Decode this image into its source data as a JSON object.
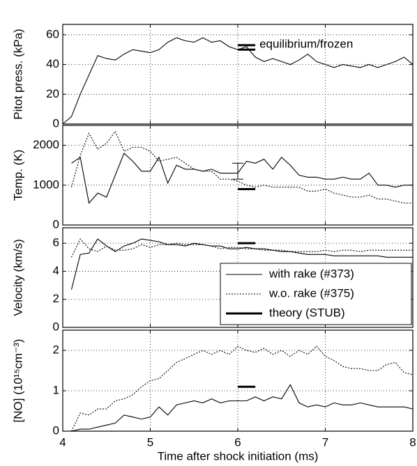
{
  "chart_data": [
    {
      "type": "line",
      "ylabel": "Pitot press. (kPa)",
      "xlim": [
        4,
        8
      ],
      "xticks": [
        4,
        5,
        6,
        7,
        8
      ],
      "ylim": [
        0,
        67
      ],
      "yticks": [
        0,
        20,
        40,
        60
      ],
      "grid": true,
      "x": [
        4.0,
        4.1,
        4.2,
        4.3,
        4.4,
        4.5,
        4.6,
        4.7,
        4.8,
        4.9,
        5.0,
        5.1,
        5.2,
        5.3,
        5.4,
        5.5,
        5.6,
        5.7,
        5.8,
        5.9,
        6.0,
        6.1,
        6.2,
        6.3,
        6.4,
        6.5,
        6.6,
        6.7,
        6.8,
        6.9,
        7.0,
        7.1,
        7.2,
        7.3,
        7.4,
        7.5,
        7.6,
        7.7,
        7.8,
        7.9,
        8.0
      ],
      "series": [
        {
          "style": "solid",
          "color": "#000000",
          "values": [
            0,
            5,
            20,
            33,
            46,
            44,
            43,
            47,
            50,
            49,
            48,
            50,
            55,
            58,
            56,
            55,
            58,
            55,
            56,
            52,
            50,
            52,
            45,
            42,
            44,
            42,
            40,
            43,
            47,
            42,
            40,
            38,
            40,
            39,
            38,
            40,
            38,
            40,
            42,
            45,
            40
          ]
        }
      ],
      "theory": {
        "x": [
          6.0,
          6.2
        ],
        "values": [
          53,
          50
        ]
      },
      "annotation": "equilibrium/frozen"
    },
    {
      "type": "line",
      "ylabel": "Temp. (K)",
      "xlim": [
        4,
        8
      ],
      "xticks": [
        4,
        5,
        6,
        7,
        8
      ],
      "ylim": [
        0,
        2500
      ],
      "yticks": [
        0,
        1000,
        2000
      ],
      "grid": true,
      "x": [
        4.1,
        4.2,
        4.3,
        4.4,
        4.5,
        4.6,
        4.7,
        4.8,
        4.9,
        5.0,
        5.1,
        5.2,
        5.3,
        5.4,
        5.5,
        5.6,
        5.7,
        5.8,
        5.9,
        6.0,
        6.1,
        6.2,
        6.3,
        6.4,
        6.5,
        6.6,
        6.7,
        6.8,
        6.9,
        7.0,
        7.1,
        7.2,
        7.3,
        7.4,
        7.5,
        7.6,
        7.7,
        7.8,
        7.9,
        8.0
      ],
      "series": [
        {
          "style": "solid",
          "color": "#000000",
          "values": [
            1550,
            1700,
            550,
            800,
            700,
            1250,
            1800,
            1600,
            1350,
            1350,
            1700,
            1050,
            1500,
            1400,
            1400,
            1350,
            1400,
            1300,
            1300,
            1300,
            1600,
            1550,
            1650,
            1400,
            1700,
            1500,
            1250,
            1200,
            1200,
            1150,
            1150,
            1200,
            1150,
            1150,
            1300,
            1000,
            1000,
            950,
            1000,
            1000
          ]
        },
        {
          "style": "dotted",
          "color": "#000000",
          "values": [
            950,
            1750,
            2300,
            1900,
            2050,
            2350,
            1850,
            1950,
            1950,
            1850,
            1600,
            1650,
            1700,
            1550,
            1400,
            1350,
            1350,
            1150,
            1150,
            1100,
            1000,
            950,
            1000,
            950,
            950,
            950,
            950,
            850,
            850,
            900,
            800,
            750,
            700,
            700,
            750,
            650,
            650,
            600,
            550,
            550
          ]
        }
      ],
      "theory": {
        "x": [
          6.0,
          6.2
        ],
        "values": [
          900
        ]
      },
      "error_bar": {
        "x": 6.0,
        "value": 1350,
        "error": 200
      }
    },
    {
      "type": "line",
      "ylabel": "Velocity (km/s)",
      "xlim": [
        4,
        8
      ],
      "xticks": [
        4,
        5,
        6,
        7,
        8
      ],
      "ylim": [
        0,
        7.1
      ],
      "yticks": [
        0,
        2,
        4,
        6
      ],
      "grid": true,
      "legend": "lower right",
      "x": [
        4.1,
        4.2,
        4.3,
        4.4,
        4.5,
        4.6,
        4.7,
        4.8,
        4.9,
        5.0,
        5.1,
        5.2,
        5.3,
        5.4,
        5.5,
        5.6,
        5.7,
        5.8,
        5.9,
        6.0,
        6.1,
        6.2,
        6.3,
        6.4,
        6.5,
        6.6,
        6.7,
        6.8,
        6.9,
        7.0,
        7.1,
        7.2,
        7.3,
        7.4,
        7.5,
        7.6,
        7.7,
        7.8,
        7.9,
        8.0
      ],
      "series": [
        {
          "name": "with rake (#373)",
          "style": "solid",
          "color": "#000000",
          "values": [
            2.7,
            5.2,
            5.3,
            6.3,
            5.8,
            5.4,
            5.8,
            6.0,
            6.3,
            6.2,
            6.1,
            5.9,
            5.9,
            5.8,
            6.0,
            5.9,
            5.8,
            5.8,
            5.6,
            5.6,
            5.7,
            5.6,
            5.6,
            5.5,
            5.4,
            5.4,
            5.3,
            5.2,
            5.2,
            5.2,
            5.1,
            5.1,
            5.1,
            5.1,
            5.1,
            5.1,
            5.0,
            5.0,
            5.0,
            5.0
          ]
        },
        {
          "name": "w.o. rake (#375)",
          "style": "dotted",
          "color": "#000000",
          "values": [
            5.0,
            6.3,
            5.6,
            5.4,
            5.8,
            5.5,
            5.5,
            5.6,
            5.9,
            5.7,
            5.9,
            5.9,
            6.0,
            5.9,
            5.9,
            5.9,
            5.8,
            5.6,
            5.7,
            5.7,
            5.6,
            5.6,
            5.5,
            5.5,
            5.5,
            5.4,
            5.4,
            5.4,
            5.4,
            5.5,
            5.4,
            5.5,
            5.5,
            5.4,
            5.5,
            5.5,
            5.5,
            5.5,
            5.5,
            5.5
          ]
        }
      ],
      "theory": {
        "name": "theory (STUB)",
        "x": [
          6.0,
          6.2
        ],
        "values": [
          6.0
        ]
      }
    },
    {
      "type": "line",
      "ylabel": "[NO] (10¹⁵cm⁻³)",
      "xlabel": "Time after shock initiation (ms)",
      "xlim": [
        4,
        8
      ],
      "xticks": [
        4,
        5,
        6,
        7,
        8
      ],
      "ylim": [
        0,
        2.5
      ],
      "yticks": [
        0,
        1,
        2
      ],
      "grid": true,
      "x": [
        4.1,
        4.2,
        4.3,
        4.4,
        4.5,
        4.6,
        4.7,
        4.8,
        4.9,
        5.0,
        5.1,
        5.2,
        5.3,
        5.4,
        5.5,
        5.6,
        5.7,
        5.8,
        5.9,
        6.0,
        6.1,
        6.2,
        6.3,
        6.4,
        6.5,
        6.6,
        6.7,
        6.8,
        6.9,
        7.0,
        7.1,
        7.2,
        7.3,
        7.4,
        7.5,
        7.6,
        7.7,
        7.8,
        7.9,
        8.0
      ],
      "series": [
        {
          "style": "solid",
          "color": "#000000",
          "values": [
            0.0,
            0.05,
            0.05,
            0.1,
            0.15,
            0.2,
            0.4,
            0.35,
            0.3,
            0.35,
            0.6,
            0.4,
            0.65,
            0.7,
            0.75,
            0.7,
            0.8,
            0.7,
            0.75,
            0.75,
            0.75,
            0.85,
            0.75,
            0.85,
            0.8,
            1.15,
            0.7,
            0.6,
            0.65,
            0.6,
            0.7,
            0.65,
            0.65,
            0.7,
            0.65,
            0.6,
            0.6,
            0.6,
            0.6,
            0.55
          ]
        },
        {
          "style": "dotted",
          "color": "#000000",
          "values": [
            0.0,
            0.45,
            0.4,
            0.55,
            0.55,
            0.75,
            0.8,
            0.9,
            1.1,
            1.25,
            1.3,
            1.5,
            1.7,
            1.8,
            1.9,
            2.0,
            1.9,
            2.0,
            1.9,
            2.1,
            2.0,
            1.95,
            2.05,
            1.9,
            2.0,
            1.85,
            2.0,
            1.9,
            2.1,
            1.85,
            1.75,
            1.6,
            1.55,
            1.55,
            1.5,
            1.5,
            1.65,
            1.7,
            1.45,
            1.4
          ]
        }
      ],
      "theory": {
        "x": [
          6.0,
          6.2
        ],
        "values": [
          1.1
        ]
      }
    }
  ]
}
